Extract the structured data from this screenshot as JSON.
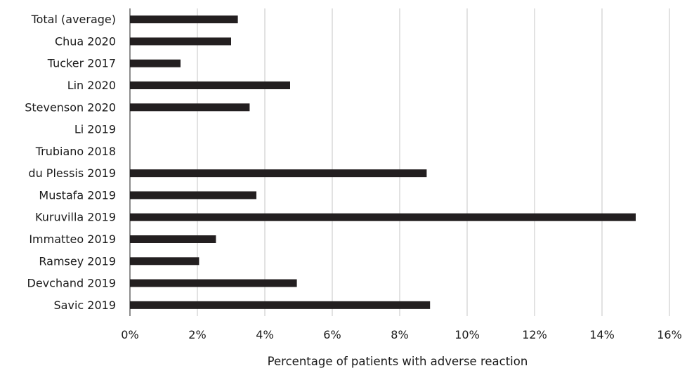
{
  "chart_data": {
    "type": "bar",
    "orientation": "horizontal",
    "categories": [
      "Total (average)",
      "Chua 2020",
      "Tucker 2017",
      "Lin 2020",
      "Stevenson 2020",
      "Li 2019",
      "Trubiano 2018",
      "du Plessis 2019",
      "Mustafa 2019",
      "Kuruvilla 2019",
      "Immatteo 2019",
      "Ramsey 2019",
      "Devchand 2019",
      "Savic 2019"
    ],
    "values": [
      3.2,
      3.0,
      1.5,
      4.75,
      3.55,
      0,
      0,
      8.8,
      3.75,
      15.0,
      2.55,
      2.05,
      4.95,
      8.9
    ],
    "value_unit": "%",
    "xlabel": "Percentage of patients with adverse reaction",
    "xlim": [
      0,
      16
    ],
    "x_ticks": [
      "0%",
      "2%",
      "4%",
      "6%",
      "8%",
      "10%",
      "12%",
      "14%",
      "16%"
    ],
    "x_tick_values": [
      0,
      2,
      4,
      6,
      8,
      10,
      12,
      14,
      16
    ],
    "grid": "vertical",
    "bar_color": "#231f20"
  }
}
